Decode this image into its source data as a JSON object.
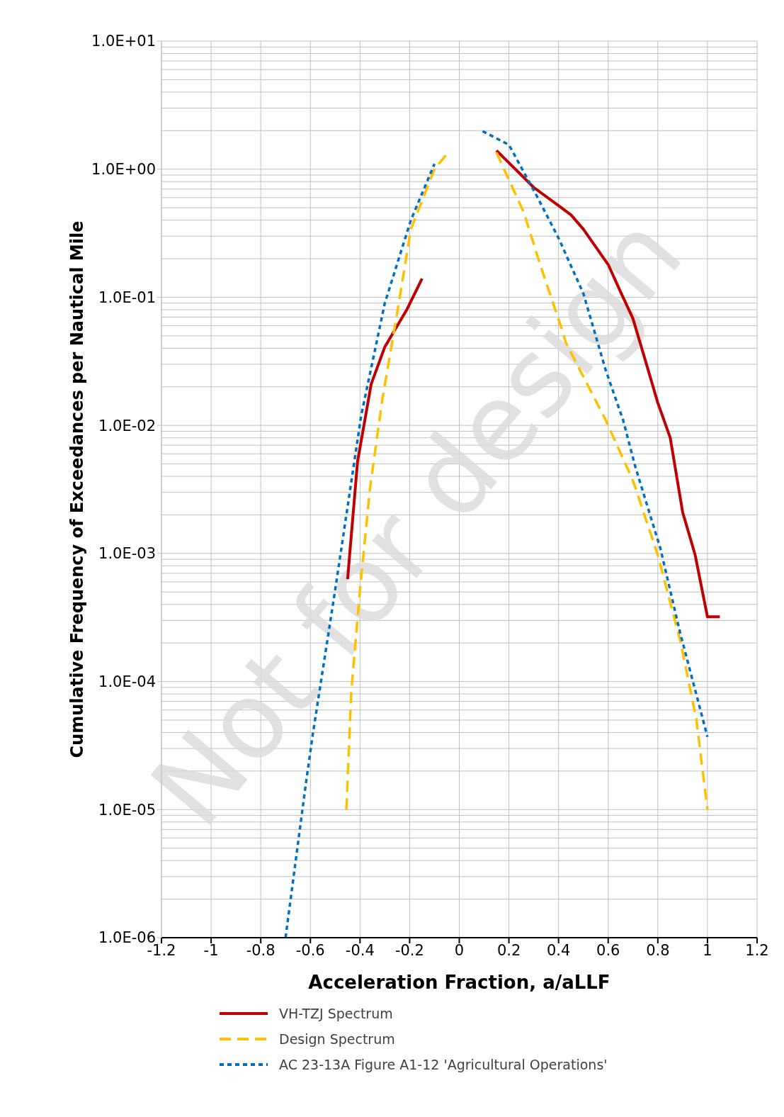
{
  "chart_data": {
    "type": "line",
    "xlabel": "Acceleration Fraction, a/aLLF",
    "ylabel": "Cumulative Frequency of Exceedances per Nautical Mile",
    "log": "y",
    "grid": true,
    "legend": "bottom",
    "marker": "none",
    "xlim": [
      -1.2,
      1.2
    ],
    "xticks": [
      -1.2,
      -1,
      -0.8,
      -0.6,
      -0.4,
      -0.2,
      0,
      0.2,
      0.4,
      0.6,
      0.8,
      1,
      1.2
    ],
    "ylim": [
      1e-06,
      10
    ],
    "yticks": [
      {
        "value": 1e-06,
        "label": "1.0E-06"
      },
      {
        "value": 1e-05,
        "label": "1.0E-05"
      },
      {
        "value": 0.0001,
        "label": "1.0E-04"
      },
      {
        "value": 0.001,
        "label": "1.0E-03"
      },
      {
        "value": 0.01,
        "label": "1.0E-02"
      },
      {
        "value": 0.1,
        "label": "1.0E-01"
      },
      {
        "value": 1,
        "label": "1.0E+00"
      },
      {
        "value": 10,
        "label": "1.0E+01"
      }
    ],
    "annotations": [
      "Not for design"
    ],
    "series": [
      {
        "name": "VH-TZJ Spectrum",
        "color": "#c00000",
        "line_style": "solid",
        "x": [
          -0.45,
          -0.41,
          -0.355,
          -0.3,
          -0.21,
          -0.15,
          0,
          0.15,
          0.25,
          0.3,
          0.4,
          0.45,
          0.5,
          0.6,
          0.65,
          0.7,
          0.75,
          0.8,
          0.85,
          0.9,
          0.95,
          1,
          1.05
        ],
        "values": [
          0.00063,
          0.0052,
          0.021,
          0.041,
          0.081,
          0.14,
          null,
          1.4,
          0.9,
          0.72,
          0.52,
          0.44,
          0.34,
          0.18,
          0.11,
          0.068,
          0.032,
          0.015,
          0.008,
          0.0021,
          0.00098,
          0.00032,
          0.00032
        ]
      },
      {
        "name": "Design Spectrum",
        "color": "#ffc000",
        "line_style": "dashed",
        "x": [
          -0.455,
          -0.435,
          -0.4,
          -0.36,
          -0.31,
          -0.25,
          -0.195,
          -0.1,
          -0.045,
          0,
          0.15,
          0.26,
          0.33,
          0.41,
          0.43,
          0.59,
          0.7,
          0.8,
          0.89,
          0.955,
          1
        ],
        "values": [
          1e-05,
          8.5e-05,
          0.00052,
          0.0032,
          0.016,
          0.076,
          0.34,
          1,
          1.35,
          null,
          1.35,
          0.46,
          0.17,
          0.059,
          0.044,
          0.011,
          0.0037,
          0.00097,
          0.00021,
          5.1e-05,
          1e-05
        ]
      },
      {
        "name": "AC 23-13A Figure A1-12 'Agricultural Operations'",
        "color": "#0070c0",
        "line_style": "dotted",
        "x": [
          -0.7,
          -0.62,
          -0.59,
          -0.5,
          -0.395,
          -0.3,
          -0.195,
          -0.1,
          0,
          0.094,
          0.2,
          0.31,
          0.4,
          0.5,
          0.59,
          0.66,
          0.71,
          0.81,
          0.89,
          1
        ],
        "values": [
          1e-06,
          1.5e-05,
          3.9e-05,
          0.00052,
          0.012,
          0.09,
          0.4,
          1.1,
          null,
          1.98,
          1.55,
          0.63,
          0.29,
          0.107,
          0.027,
          0.011,
          0.0047,
          0.0011,
          0.00024,
          3.7e-05
        ]
      }
    ]
  }
}
